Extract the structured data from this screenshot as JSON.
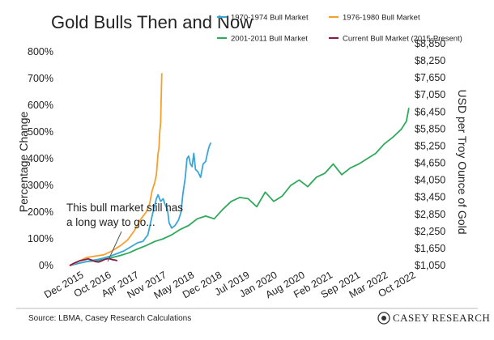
{
  "chart_data": {
    "type": "line",
    "title": "Gold Bulls Then and Now",
    "ylabel": "Percentage Change",
    "y2label": "USD per Troy Ounce of Gold",
    "ylim": [
      0,
      800
    ],
    "yticks": [
      "0%",
      "100%",
      "200%",
      "300%",
      "400%",
      "500%",
      "600%",
      "700%",
      "800%"
    ],
    "y2ticks": [
      "$1,050",
      "$1,650",
      "$2,250",
      "$2,850",
      "$3,450",
      "$4,050",
      "$4,650",
      "$5,250",
      "$5,850",
      "$6,450",
      "$7,050",
      "$7,650",
      "$8,250",
      "$8,850"
    ],
    "xticks": [
      "Dec 2015",
      "Oct 2016",
      "Apr 2017",
      "Nov 2017",
      "May 2018",
      "Dec 2018",
      "Jul 2019",
      "Jan 2020",
      "Aug 2020",
      "Feb 2021",
      "Sep 2021",
      "Mar 2022",
      "Oct 2022"
    ],
    "grid": false,
    "legend_position": "top",
    "annotation": {
      "line1": "This bull market still has",
      "line2": "a long way to go..."
    },
    "series": [
      {
        "name": "1970-1974 Bull Market",
        "color": "#3aa6d8",
        "points": [
          [
            0,
            0
          ],
          [
            0.4,
            6
          ],
          [
            0.8,
            12
          ],
          [
            1.2,
            18
          ],
          [
            1.6,
            22
          ],
          [
            2.0,
            28
          ],
          [
            2.4,
            35
          ],
          [
            2.8,
            45
          ],
          [
            3.2,
            55
          ],
          [
            3.6,
            70
          ],
          [
            4.0,
            85
          ],
          [
            4.3,
            90
          ],
          [
            4.6,
            115
          ],
          [
            4.9,
            200
          ],
          [
            5.1,
            250
          ],
          [
            5.2,
            265
          ],
          [
            5.35,
            240
          ],
          [
            5.5,
            250
          ],
          [
            5.6,
            230
          ],
          [
            5.75,
            210
          ],
          [
            5.85,
            160
          ],
          [
            6.0,
            140
          ],
          [
            6.2,
            150
          ],
          [
            6.4,
            170
          ],
          [
            6.55,
            200
          ],
          [
            6.65,
            265
          ],
          [
            6.8,
            330
          ],
          [
            6.9,
            400
          ],
          [
            7.0,
            410
          ],
          [
            7.1,
            380
          ],
          [
            7.2,
            370
          ],
          [
            7.3,
            420
          ],
          [
            7.4,
            360
          ],
          [
            7.55,
            350
          ],
          [
            7.7,
            330
          ],
          [
            7.85,
            380
          ],
          [
            8.0,
            390
          ],
          [
            8.1,
            420
          ],
          [
            8.2,
            445
          ],
          [
            8.3,
            460
          ]
        ]
      },
      {
        "name": "1976-1980 Bull Market",
        "color": "#f5a02d",
        "points": [
          [
            0,
            0
          ],
          [
            0.5,
            15
          ],
          [
            1.0,
            30
          ],
          [
            1.5,
            35
          ],
          [
            2.0,
            40
          ],
          [
            2.5,
            55
          ],
          [
            3.0,
            75
          ],
          [
            3.4,
            95
          ],
          [
            3.8,
            130
          ],
          [
            4.2,
            175
          ],
          [
            4.5,
            200
          ],
          [
            4.7,
            230
          ],
          [
            4.85,
            280
          ],
          [
            5.0,
            310
          ],
          [
            5.1,
            340
          ],
          [
            5.2,
            420
          ],
          [
            5.25,
            440
          ],
          [
            5.3,
            500
          ],
          [
            5.35,
            530
          ],
          [
            5.42,
            720
          ]
        ]
      },
      {
        "name": "2001-2011 Bull Market",
        "color": "#2eaa5a",
        "points": [
          [
            0,
            0
          ],
          [
            0.5,
            8
          ],
          [
            1.0,
            15
          ],
          [
            1.5,
            18
          ],
          [
            2.0,
            22
          ],
          [
            2.5,
            30
          ],
          [
            3.0,
            38
          ],
          [
            3.5,
            48
          ],
          [
            4.0,
            62
          ],
          [
            4.5,
            75
          ],
          [
            5.0,
            90
          ],
          [
            5.5,
            100
          ],
          [
            6.0,
            115
          ],
          [
            6.5,
            135
          ],
          [
            7.0,
            150
          ],
          [
            7.5,
            175
          ],
          [
            8.0,
            185
          ],
          [
            8.5,
            175
          ],
          [
            9.0,
            210
          ],
          [
            9.5,
            240
          ],
          [
            10.0,
            255
          ],
          [
            10.5,
            250
          ],
          [
            11.0,
            220
          ],
          [
            11.5,
            275
          ],
          [
            12.0,
            240
          ],
          [
            12.5,
            260
          ],
          [
            13.0,
            300
          ],
          [
            13.5,
            320
          ],
          [
            14.0,
            295
          ],
          [
            14.5,
            330
          ],
          [
            15.0,
            345
          ],
          [
            15.5,
            380
          ],
          [
            16.0,
            340
          ],
          [
            16.5,
            365
          ],
          [
            17.0,
            380
          ],
          [
            17.5,
            400
          ],
          [
            18.0,
            420
          ],
          [
            18.5,
            455
          ],
          [
            19.0,
            480
          ],
          [
            19.5,
            510
          ],
          [
            19.8,
            540
          ],
          [
            19.95,
            590
          ]
        ]
      },
      {
        "name": "Current Bull Market (2015-Present)",
        "color": "#8b1a4a",
        "points": [
          [
            0,
            0
          ],
          [
            0.3,
            10
          ],
          [
            0.6,
            18
          ],
          [
            0.9,
            22
          ],
          [
            1.1,
            25
          ],
          [
            1.3,
            20
          ],
          [
            1.5,
            15
          ],
          [
            1.7,
            13
          ],
          [
            1.9,
            18
          ],
          [
            2.1,
            24
          ],
          [
            2.3,
            26
          ],
          [
            2.5,
            22
          ],
          [
            2.7,
            20
          ],
          [
            2.8,
            18
          ]
        ]
      }
    ]
  }
}
